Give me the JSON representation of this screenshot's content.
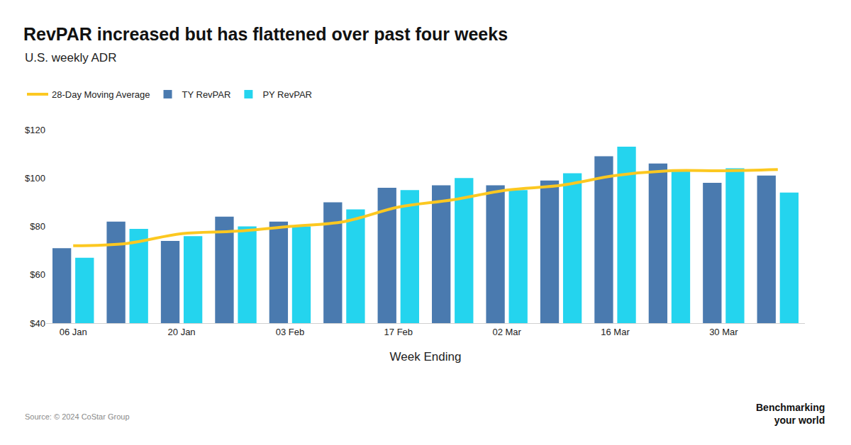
{
  "chart_data": {
    "type": "bar",
    "title": "RevPAR increased but has flattened over past four weeks",
    "subtitle": "U.S. weekly ADR",
    "x_label": "Week Ending",
    "categories": [
      "06 Jan",
      null,
      "20 Jan",
      null,
      "03 Feb",
      null,
      "17 Feb",
      null,
      "02 Mar",
      null,
      "16 Mar",
      null,
      "30 Mar",
      null
    ],
    "series": [
      {
        "name": "28-Day Moving Average",
        "type": "line",
        "color": "#fcc820",
        "values": [
          72,
          73,
          77,
          78,
          80,
          82,
          88,
          91,
          95,
          97,
          101,
          103,
          103,
          103.5
        ]
      },
      {
        "name": "TY RevPAR",
        "type": "bar",
        "color": "#4a7aaf",
        "values": [
          71,
          82,
          74,
          84,
          82,
          90,
          96,
          97,
          97,
          99,
          109,
          106,
          98,
          101
        ]
      },
      {
        "name": "PY RevPAR",
        "type": "bar",
        "color": "#24d4ee",
        "values": [
          67,
          79,
          76,
          80,
          80,
          87,
          95,
          100,
          95,
          102,
          113,
          103,
          104,
          94
        ]
      }
    ],
    "ylim": [
      40,
      120
    ],
    "yticks": [
      {
        "value": 40,
        "label": "$40"
      },
      {
        "value": 60,
        "label": "$60"
      },
      {
        "value": 80,
        "label": "$80"
      },
      {
        "value": 100,
        "label": "$100"
      },
      {
        "value": 120,
        "label": "$120"
      }
    ],
    "grid": false,
    "legend": "top-left",
    "source": "Source: © 2024 CoStar Group",
    "logo": [
      "Benchmarking",
      "your world"
    ]
  }
}
